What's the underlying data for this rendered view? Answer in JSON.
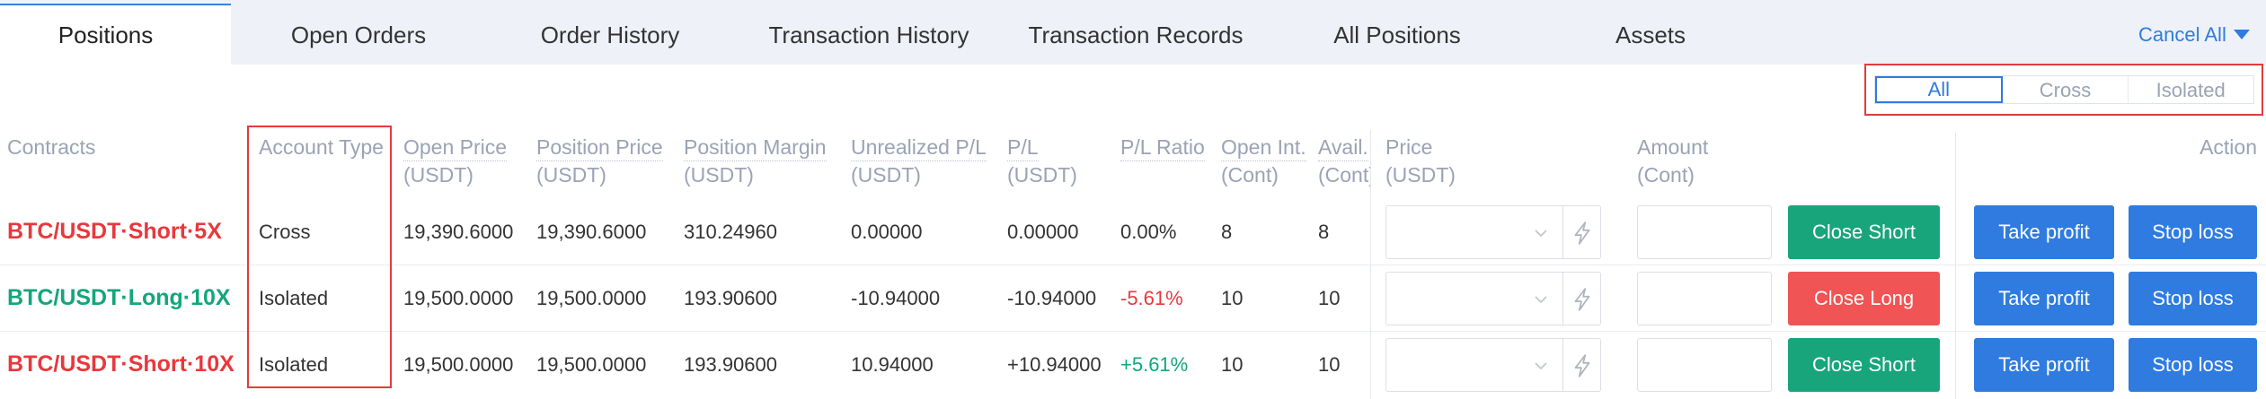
{
  "tabs": [
    {
      "label": "Positions"
    },
    {
      "label": "Open Orders"
    },
    {
      "label": "Order History"
    },
    {
      "label": "Transaction History"
    },
    {
      "label": "Transaction Records"
    },
    {
      "label": "All Positions"
    },
    {
      "label": "Assets"
    }
  ],
  "active_tab_index": 0,
  "cancel_all": {
    "label": "Cancel All"
  },
  "filter": {
    "options": [
      "All",
      "Cross",
      "Isolated"
    ],
    "selected_index": 0
  },
  "columns": {
    "contracts": "Contracts",
    "account_type": "Account Type",
    "open_price": [
      "Open Price",
      "(USDT)"
    ],
    "position_price": [
      "Position Price",
      "(USDT)"
    ],
    "position_margin": [
      "Position Margin",
      "(USDT)"
    ],
    "unrealized_pl": [
      "Unrealized P/L",
      "(USDT)"
    ],
    "pl": [
      "P/L",
      "(USDT)"
    ],
    "pl_ratio": "P/L Ratio",
    "open_int": [
      "Open Int.",
      "(Cont)"
    ],
    "avail": [
      "Avail.",
      "(Cont)"
    ],
    "price": [
      "Price",
      "(USDT)"
    ],
    "amount": [
      "Amount",
      "(Cont)"
    ],
    "action": "Action"
  },
  "rows": [
    {
      "contract": "BTC/USDT·Short·5X",
      "contract_color": "#e8383d",
      "account_type": "Cross",
      "open_price": "19,390.6000",
      "position_price": "19,390.6000",
      "position_margin": "310.24960",
      "unrealized_pl": "0.00000",
      "pl": "0.00000",
      "pl_ratio": "0.00%",
      "pl_ratio_color": "#333333",
      "open_int": "8",
      "avail": "8",
      "close_label": "Close Short",
      "close_color": "#19a57c",
      "take_profit_label": "Take profit",
      "stop_loss_label": "Stop loss"
    },
    {
      "contract": "BTC/USDT·Long·10X",
      "contract_color": "#13a67a",
      "account_type": "Isolated",
      "open_price": "19,500.0000",
      "position_price": "19,500.0000",
      "position_margin": "193.90600",
      "unrealized_pl": "-10.94000",
      "pl": "-10.94000",
      "pl_ratio": "-5.61%",
      "pl_ratio_color": "#e8383d",
      "open_int": "10",
      "avail": "10",
      "close_label": "Close Long",
      "close_color": "#f05454",
      "take_profit_label": "Take profit",
      "stop_loss_label": "Stop loss"
    },
    {
      "contract": "BTC/USDT·Short·10X",
      "contract_color": "#e8383d",
      "account_type": "Isolated",
      "open_price": "19,500.0000",
      "position_price": "19,500.0000",
      "position_margin": "193.90600",
      "unrealized_pl": "10.94000",
      "pl": "+10.94000",
      "pl_ratio": "+5.61%",
      "pl_ratio_color": "#13a67a",
      "open_int": "10",
      "avail": "10",
      "close_label": "Close Short",
      "close_color": "#19a57c",
      "take_profit_label": "Take profit",
      "stop_loss_label": "Stop loss"
    }
  ],
  "icons": {
    "cancel_all": "caret-down-icon",
    "price_select": "chevron-down-icon",
    "price_flash": "lightning-icon"
  },
  "colors": {
    "accent": "#2f7be0",
    "short": "#e8383d",
    "long": "#13a67a",
    "highlight": "#e23b3b",
    "tabbar_bg": "#eef2f8",
    "header_text": "#9aa3b5"
  }
}
